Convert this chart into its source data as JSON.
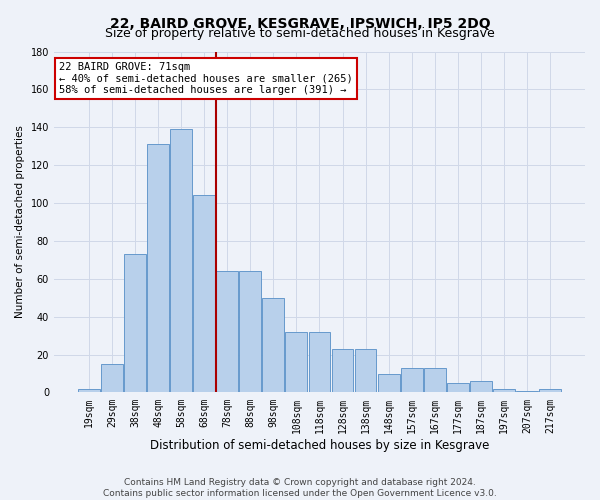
{
  "title": "22, BAIRD GROVE, KESGRAVE, IPSWICH, IP5 2DQ",
  "subtitle": "Size of property relative to semi-detached houses in Kesgrave",
  "xlabel": "Distribution of semi-detached houses by size in Kesgrave",
  "ylabel": "Number of semi-detached properties",
  "footer_line1": "Contains HM Land Registry data © Crown copyright and database right 2024.",
  "footer_line2": "Contains public sector information licensed under the Open Government Licence v3.0.",
  "categories": [
    "19sqm",
    "29sqm",
    "38sqm",
    "48sqm",
    "58sqm",
    "68sqm",
    "78sqm",
    "88sqm",
    "98sqm",
    "108sqm",
    "118sqm",
    "128sqm",
    "138sqm",
    "148sqm",
    "157sqm",
    "167sqm",
    "177sqm",
    "187sqm",
    "197sqm",
    "207sqm",
    "217sqm"
  ],
  "values": [
    2,
    15,
    73,
    131,
    139,
    104,
    64,
    64,
    50,
    32,
    32,
    23,
    23,
    10,
    13,
    13,
    5,
    6,
    2,
    1,
    2
  ],
  "bar_color": "#b8d0eb",
  "bar_edge_color": "#6699cc",
  "grid_color": "#d0d8e8",
  "background_color": "#eef2f9",
  "annotation_text": "22 BAIRD GROVE: 71sqm\n← 40% of semi-detached houses are smaller (265)\n58% of semi-detached houses are larger (391) →",
  "annotation_box_color": "#ffffff",
  "annotation_box_edge": "#cc0000",
  "vline_x": 5.5,
  "vline_color": "#aa0000",
  "ylim": [
    0,
    180
  ],
  "yticks": [
    0,
    20,
    40,
    60,
    80,
    100,
    120,
    140,
    160,
    180
  ],
  "title_fontsize": 10,
  "subtitle_fontsize": 9,
  "xlabel_fontsize": 8.5,
  "ylabel_fontsize": 7.5,
  "tick_fontsize": 7,
  "footer_fontsize": 6.5,
  "annotation_fontsize": 7.5
}
